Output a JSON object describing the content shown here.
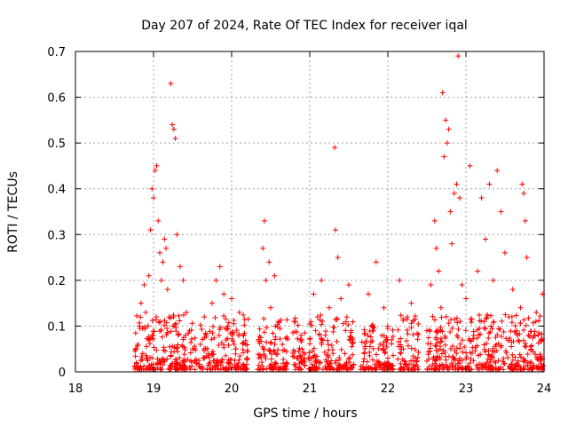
{
  "chart_data": {
    "type": "scatter",
    "title": "Day 207 of 2024, Rate Of TEC Index for receiver iqal",
    "xlabel": "GPS time / hours",
    "ylabel": "ROTI / TECUs",
    "xlim": [
      18,
      24
    ],
    "ylim": [
      0,
      0.7
    ],
    "xticks": [
      "18",
      "19",
      "20",
      "21",
      "22",
      "23",
      "24"
    ],
    "yticks": [
      "0",
      "0.1",
      "0.2",
      "0.3",
      "0.4",
      "0.5",
      "0.6",
      "0.7"
    ],
    "grid": true,
    "marker": "+",
    "series": [
      {
        "name": "ROTI",
        "color": "#ff0000",
        "points": [
          [
            18.78,
            0.02
          ],
          [
            18.8,
            0.06
          ],
          [
            18.82,
            0.1
          ],
          [
            18.84,
            0.15
          ],
          [
            18.86,
            0.04
          ],
          [
            18.88,
            0.19
          ],
          [
            18.9,
            0.13
          ],
          [
            18.92,
            0.03
          ],
          [
            18.94,
            0.21
          ],
          [
            18.96,
            0.31
          ],
          [
            18.98,
            0.4
          ],
          [
            19.0,
            0.38
          ],
          [
            19.02,
            0.44
          ],
          [
            19.04,
            0.45
          ],
          [
            19.06,
            0.33
          ],
          [
            19.08,
            0.26
          ],
          [
            19.1,
            0.2
          ],
          [
            19.12,
            0.24
          ],
          [
            19.14,
            0.29
          ],
          [
            19.16,
            0.27
          ],
          [
            19.18,
            0.18
          ],
          [
            19.2,
            0.12
          ],
          [
            19.22,
            0.63
          ],
          [
            19.24,
            0.54
          ],
          [
            19.26,
            0.53
          ],
          [
            19.28,
            0.51
          ],
          [
            19.3,
            0.3
          ],
          [
            19.34,
            0.23
          ],
          [
            19.38,
            0.2
          ],
          [
            19.42,
            0.13
          ],
          [
            19.46,
            0.09
          ],
          [
            19.5,
            0.05
          ],
          [
            19.55,
            0.02
          ],
          [
            19.6,
            0.06
          ],
          [
            19.65,
            0.12
          ],
          [
            19.7,
            0.04
          ],
          [
            19.75,
            0.15
          ],
          [
            19.8,
            0.2
          ],
          [
            19.85,
            0.23
          ],
          [
            19.9,
            0.17
          ],
          [
            19.95,
            0.1
          ],
          [
            20.0,
            0.16
          ],
          [
            20.05,
            0.05
          ],
          [
            20.1,
            0.13
          ],
          [
            20.15,
            0.08
          ],
          [
            20.2,
            0.03
          ],
          [
            20.35,
            0.03
          ],
          [
            20.4,
            0.27
          ],
          [
            20.42,
            0.33
          ],
          [
            20.44,
            0.2
          ],
          [
            20.48,
            0.24
          ],
          [
            20.5,
            0.14
          ],
          [
            20.55,
            0.21
          ],
          [
            20.6,
            0.11
          ],
          [
            20.65,
            0.06
          ],
          [
            20.7,
            0.02
          ],
          [
            20.8,
            0.11
          ],
          [
            20.85,
            0.03
          ],
          [
            20.9,
            0.07
          ],
          [
            21.0,
            0.03
          ],
          [
            21.05,
            0.17
          ],
          [
            21.1,
            0.12
          ],
          [
            21.15,
            0.2
          ],
          [
            21.2,
            0.08
          ],
          [
            21.25,
            0.14
          ],
          [
            21.32,
            0.49
          ],
          [
            21.33,
            0.31
          ],
          [
            21.36,
            0.25
          ],
          [
            21.4,
            0.16
          ],
          [
            21.45,
            0.04
          ],
          [
            21.5,
            0.19
          ],
          [
            21.55,
            0.07
          ],
          [
            21.7,
            0.04
          ],
          [
            21.75,
            0.17
          ],
          [
            21.8,
            0.1
          ],
          [
            21.85,
            0.24
          ],
          [
            21.9,
            0.06
          ],
          [
            21.95,
            0.14
          ],
          [
            22.0,
            0.03
          ],
          [
            22.05,
            0.07
          ],
          [
            22.15,
            0.2
          ],
          [
            22.2,
            0.05
          ],
          [
            22.25,
            0.12
          ],
          [
            22.3,
            0.15
          ],
          [
            22.35,
            0.03
          ],
          [
            22.5,
            0.09
          ],
          [
            22.55,
            0.19
          ],
          [
            22.6,
            0.33
          ],
          [
            22.62,
            0.27
          ],
          [
            22.65,
            0.22
          ],
          [
            22.68,
            0.14
          ],
          [
            22.7,
            0.61
          ],
          [
            22.72,
            0.47
          ],
          [
            22.74,
            0.55
          ],
          [
            22.76,
            0.5
          ],
          [
            22.78,
            0.53
          ],
          [
            22.8,
            0.35
          ],
          [
            22.82,
            0.28
          ],
          [
            22.85,
            0.39
          ],
          [
            22.88,
            0.41
          ],
          [
            22.9,
            0.69
          ],
          [
            22.92,
            0.38
          ],
          [
            22.95,
            0.19
          ],
          [
            23.0,
            0.16
          ],
          [
            23.05,
            0.45
          ],
          [
            23.1,
            0.08
          ],
          [
            23.15,
            0.22
          ],
          [
            23.2,
            0.38
          ],
          [
            23.25,
            0.29
          ],
          [
            23.3,
            0.41
          ],
          [
            23.35,
            0.2
          ],
          [
            23.4,
            0.44
          ],
          [
            23.45,
            0.35
          ],
          [
            23.5,
            0.26
          ],
          [
            23.55,
            0.12
          ],
          [
            23.6,
            0.18
          ],
          [
            23.65,
            0.09
          ],
          [
            23.7,
            0.14
          ],
          [
            23.72,
            0.41
          ],
          [
            23.74,
            0.39
          ],
          [
            23.76,
            0.33
          ],
          [
            23.78,
            0.25
          ],
          [
            23.8,
            0.08
          ],
          [
            23.9,
            0.13
          ],
          [
            23.95,
            0.03
          ],
          [
            23.98,
            0.17
          ]
        ]
      }
    ]
  }
}
